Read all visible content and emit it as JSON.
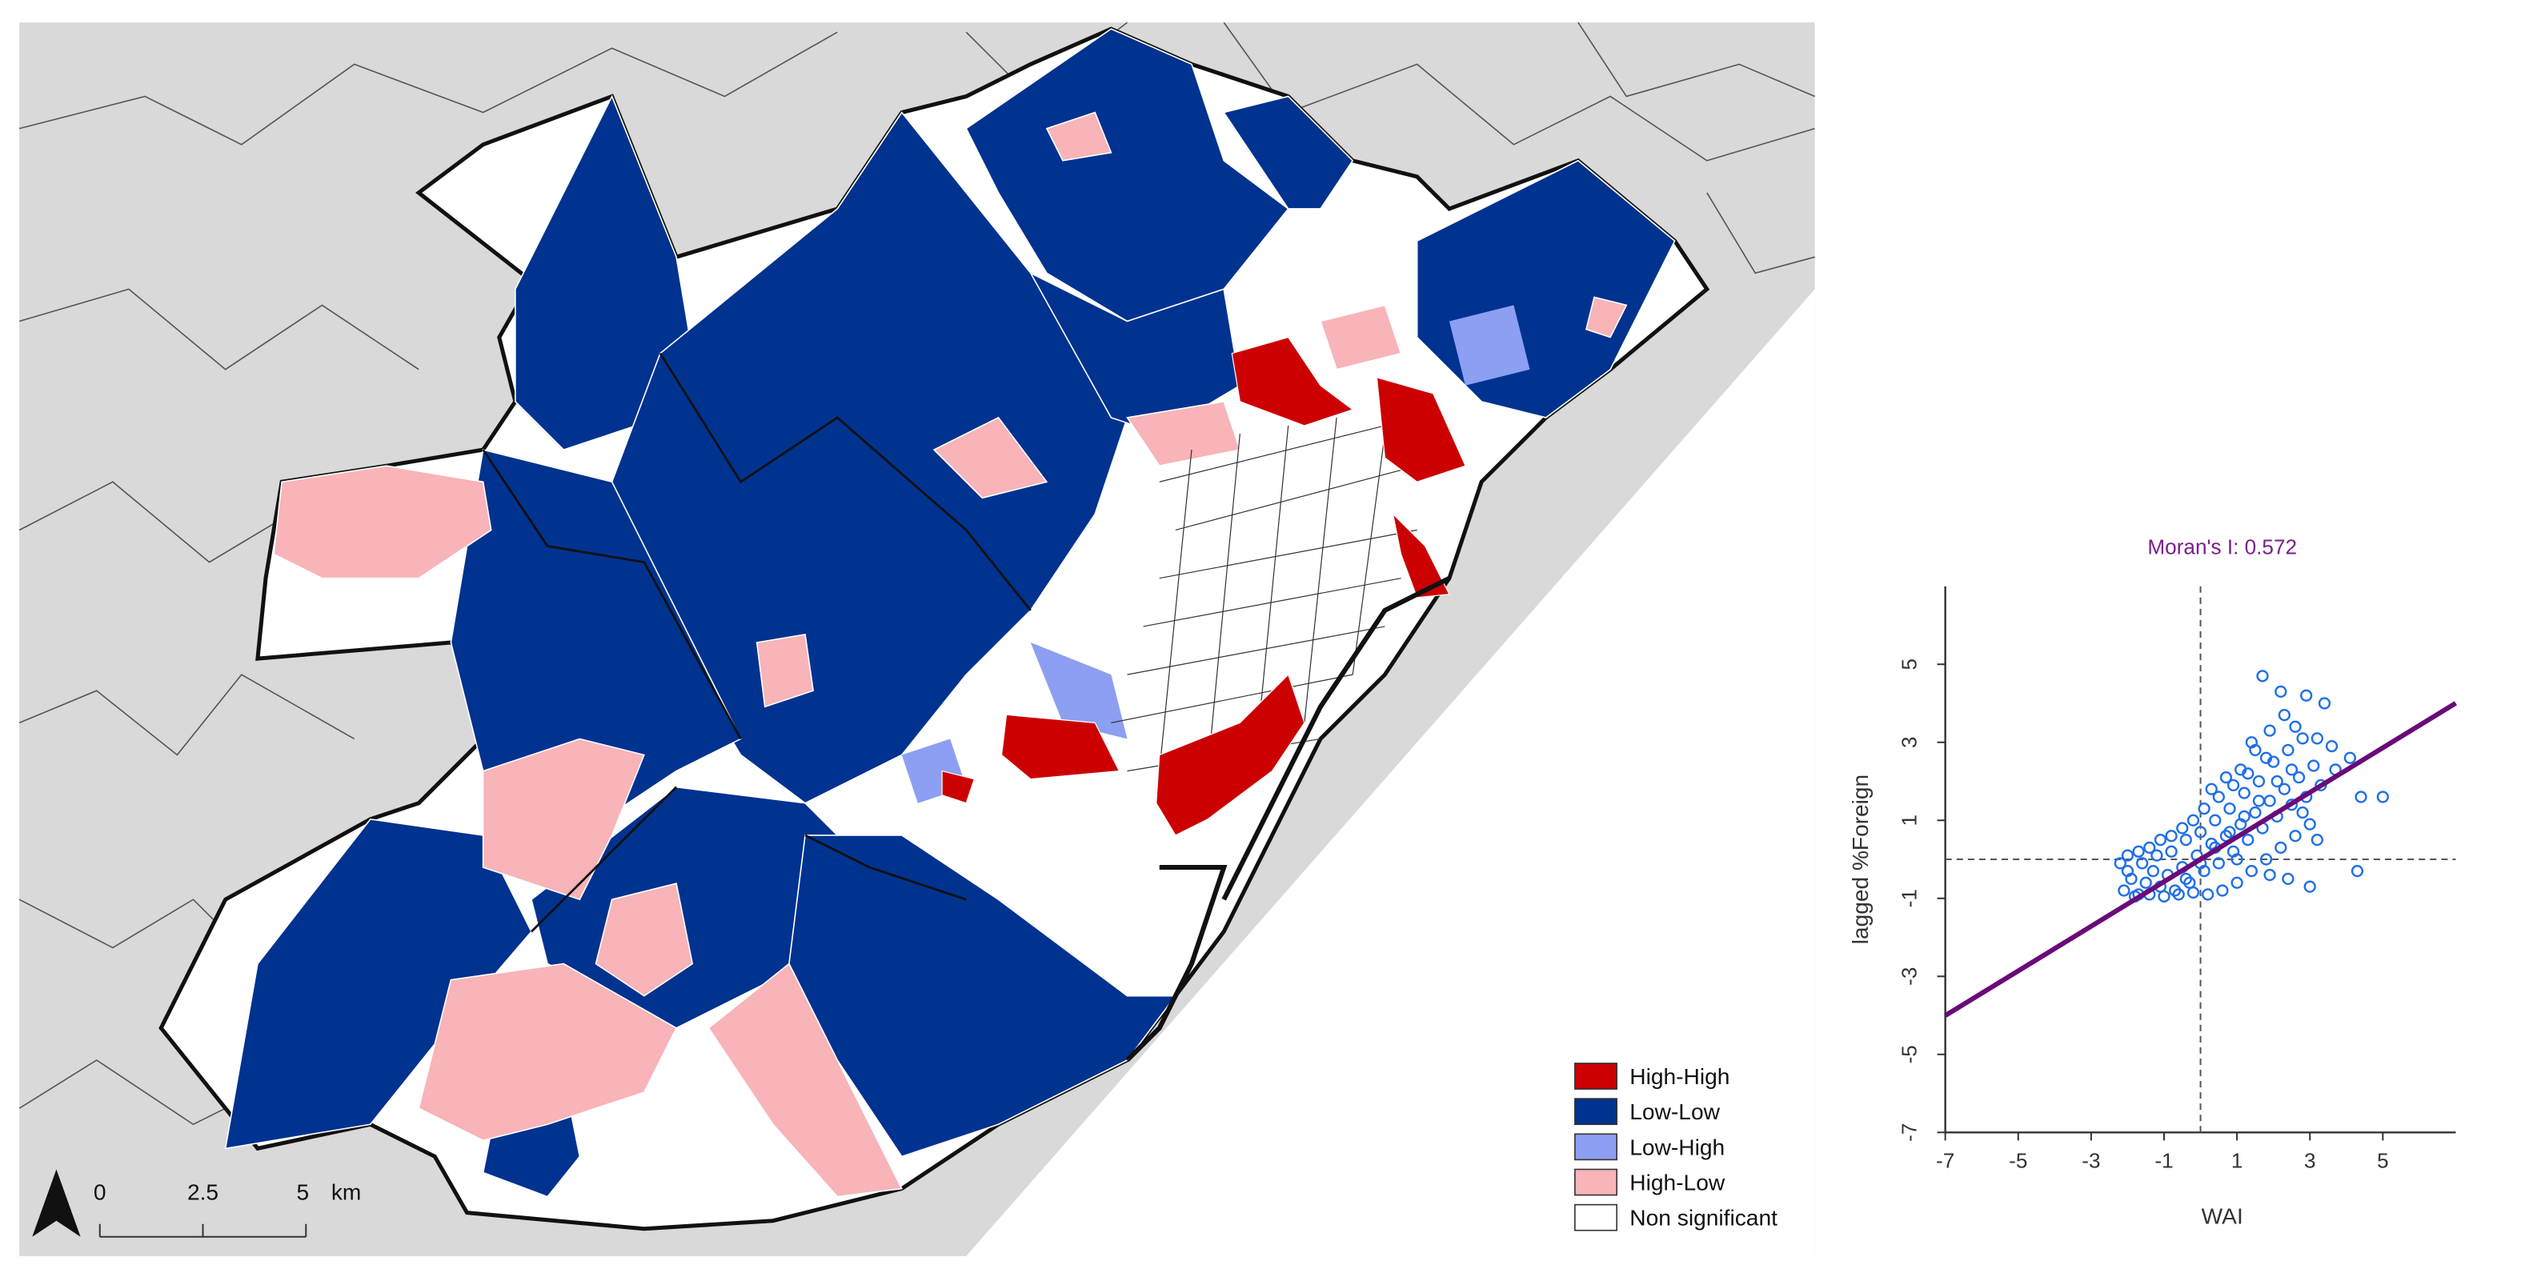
{
  "legend": {
    "items": [
      {
        "label": "High-High",
        "color": "#cc0000"
      },
      {
        "label": "Low-Low",
        "color": "#003290"
      },
      {
        "label": "Low-High",
        "color": "#8c9ff2"
      },
      {
        "label": "High-Low",
        "color": "#f8b4b8"
      },
      {
        "label": "Non significant",
        "color": "#ffffff"
      }
    ]
  },
  "scale_bar": {
    "ticks": [
      "0",
      "2.5",
      "5"
    ],
    "unit": "km"
  },
  "north_arrow": {
    "icon": "north-arrow-icon"
  },
  "colors": {
    "background_land": "#d9d9d9",
    "high_high": "#cc0000",
    "low_low": "#003290",
    "low_high": "#8c9ff2",
    "high_low": "#f8b4b8",
    "scatter_points": "#1f6fe8",
    "regression_line": "#6a0a7a",
    "title_color": "#7a1f8a"
  },
  "chart_data": {
    "type": "scatter",
    "title": "Moran's I: 0.572",
    "xlabel": "WAI",
    "ylabel": "lagged %Foreign",
    "xlim": [
      -7,
      7
    ],
    "ylim": [
      -7,
      7
    ],
    "xticks": [
      "-7",
      "-5",
      "-3",
      "-1",
      "1",
      "3",
      "5"
    ],
    "yticks": [
      "-7",
      "-5",
      "-3",
      "-1",
      "1",
      "3",
      "5"
    ],
    "regression": {
      "slope": 0.572,
      "intercept": 0.0
    },
    "reference_lines": {
      "x": 0,
      "y": 0
    },
    "points": [
      [
        -2.1,
        -0.8
      ],
      [
        -1.9,
        -0.5
      ],
      [
        -1.7,
        -0.9
      ],
      [
        -1.5,
        -0.6
      ],
      [
        -1.3,
        -0.3
      ],
      [
        -1.1,
        -0.7
      ],
      [
        -0.9,
        -0.4
      ],
      [
        -0.7,
        -0.8
      ],
      [
        -0.5,
        -0.2
      ],
      [
        -0.3,
        -0.6
      ],
      [
        -0.1,
        0.1
      ],
      [
        0.1,
        -0.3
      ],
      [
        0.3,
        0.4
      ],
      [
        0.5,
        -0.1
      ],
      [
        0.7,
        0.6
      ],
      [
        0.9,
        0.2
      ],
      [
        1.1,
        0.9
      ],
      [
        1.3,
        0.5
      ],
      [
        1.5,
        1.2
      ],
      [
        1.7,
        0.8
      ],
      [
        1.9,
        1.5
      ],
      [
        2.1,
        1.1
      ],
      [
        2.3,
        1.8
      ],
      [
        2.5,
        1.4
      ],
      [
        2.7,
        2.1
      ],
      [
        2.9,
        1.6
      ],
      [
        3.1,
        2.4
      ],
      [
        -2.0,
        -0.3
      ],
      [
        -1.6,
        -0.1
      ],
      [
        -1.2,
        0.1
      ],
      [
        -0.8,
        0.2
      ],
      [
        -0.4,
        0.5
      ],
      [
        0.0,
        0.7
      ],
      [
        0.4,
        1.0
      ],
      [
        0.8,
        1.3
      ],
      [
        1.2,
        1.7
      ],
      [
        1.6,
        2.0
      ],
      [
        2.0,
        2.5
      ],
      [
        2.4,
        2.8
      ],
      [
        2.8,
        3.1
      ],
      [
        -1.8,
        -0.95
      ],
      [
        -1.4,
        -0.9
      ],
      [
        -1.0,
        -0.95
      ],
      [
        -0.6,
        -0.9
      ],
      [
        -0.2,
        -0.85
      ],
      [
        0.2,
        -0.9
      ],
      [
        0.6,
        -0.8
      ],
      [
        1.0,
        -0.6
      ],
      [
        1.4,
        -0.3
      ],
      [
        1.8,
        0.0
      ],
      [
        2.2,
        0.3
      ],
      [
        2.6,
        0.6
      ],
      [
        3.0,
        0.9
      ],
      [
        1.1,
        2.3
      ],
      [
        1.5,
        2.8
      ],
      [
        1.9,
        3.3
      ],
      [
        2.3,
        3.7
      ],
      [
        1.7,
        4.7
      ],
      [
        2.2,
        4.3
      ],
      [
        2.9,
        4.2
      ],
      [
        3.4,
        4.0
      ],
      [
        2.6,
        3.4
      ],
      [
        3.2,
        3.1
      ],
      [
        3.6,
        2.9
      ],
      [
        4.1,
        2.6
      ],
      [
        4.4,
        1.6
      ],
      [
        5.0,
        1.6
      ],
      [
        4.3,
        -0.3
      ],
      [
        3.0,
        -0.7
      ],
      [
        2.4,
        -0.5
      ],
      [
        -2.2,
        -0.1
      ],
      [
        -2.0,
        0.1
      ],
      [
        -1.7,
        0.2
      ],
      [
        -1.4,
        0.3
      ],
      [
        -1.1,
        0.5
      ],
      [
        -0.8,
        0.6
      ],
      [
        -0.5,
        0.8
      ],
      [
        -0.2,
        1.0
      ],
      [
        0.1,
        1.3
      ],
      [
        0.5,
        1.6
      ],
      [
        0.9,
        1.9
      ],
      [
        1.3,
        2.2
      ],
      [
        1.6,
        1.5
      ],
      [
        1.2,
        1.1
      ],
      [
        0.8,
        0.7
      ],
      [
        0.4,
        0.3
      ],
      [
        0.0,
        -0.1
      ],
      [
        -0.4,
        -0.5
      ],
      [
        2.1,
        2.0
      ],
      [
        2.5,
        2.3
      ],
      [
        1.8,
        2.6
      ],
      [
        1.4,
        3.0
      ],
      [
        0.7,
        2.1
      ],
      [
        0.3,
        1.8
      ],
      [
        3.3,
        1.9
      ],
      [
        3.7,
        2.3
      ],
      [
        2.8,
        1.2
      ],
      [
        3.2,
        0.5
      ],
      [
        1.0,
        0.0
      ],
      [
        1.9,
        -0.4
      ]
    ]
  }
}
